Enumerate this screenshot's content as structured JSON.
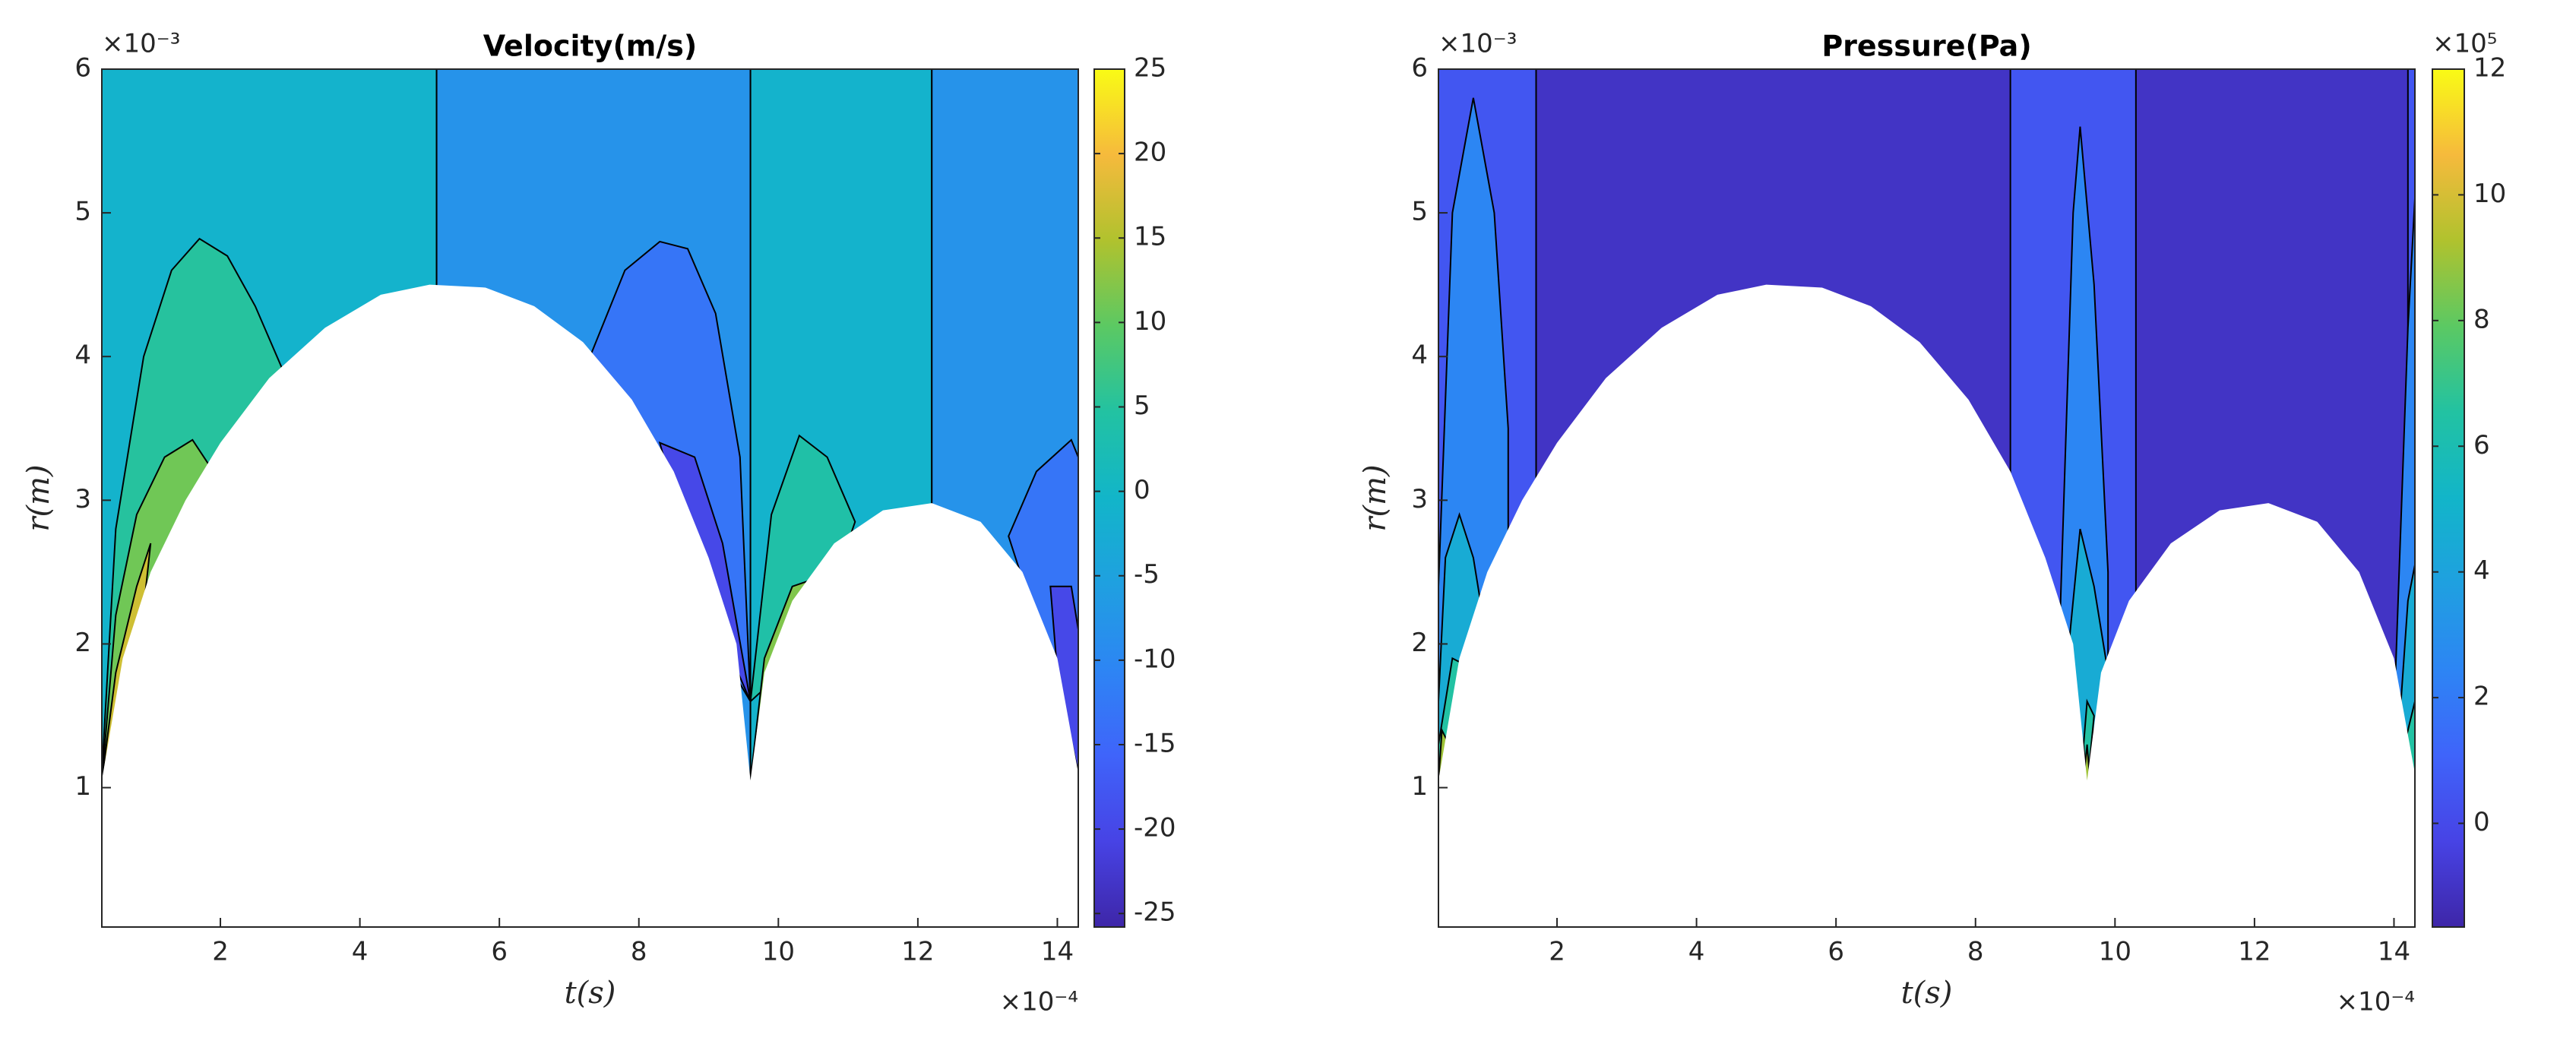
{
  "chart_data": [
    {
      "type": "contour",
      "title": "Velocity(m/s)",
      "x_label": "t(s)",
      "y_label": "r(m)",
      "x_exponent": "×10⁻⁴",
      "y_exponent": "×10⁻³",
      "xlim": [
        0.3,
        14.3
      ],
      "ylim": [
        0.03,
        6
      ],
      "xticks": [
        2,
        4,
        6,
        8,
        10,
        12,
        14
      ],
      "yticks": [
        1,
        2,
        3,
        4,
        5,
        6
      ],
      "clim": [
        -25.8,
        25
      ],
      "cticks": [
        -25,
        -20,
        -15,
        -10,
        -5,
        0,
        5,
        10,
        15,
        20,
        25
      ],
      "colormap": [
        "#3e26a8",
        "#4743e5",
        "#3f64fa",
        "#2d85f4",
        "#1fa0e0",
        "#12b5c9",
        "#22c2a2",
        "#5bc963",
        "#b0c22e",
        "#f6ba3c",
        "#f9fb15"
      ],
      "bubble": {
        "t": [
          0.3,
          0.6,
          1.0,
          1.5,
          2.0,
          2.7,
          3.5,
          4.3,
          5.0,
          5.8,
          6.5,
          7.2,
          7.9,
          8.5,
          9.0,
          9.4,
          9.6,
          9.8,
          10.2,
          10.8,
          11.5,
          12.2,
          12.9,
          13.5,
          14.0,
          14.3
        ],
        "r": [
          1.05,
          1.9,
          2.5,
          3.0,
          3.4,
          3.85,
          4.2,
          4.43,
          4.5,
          4.48,
          4.35,
          4.1,
          3.7,
          3.2,
          2.6,
          2.0,
          1.05,
          1.8,
          2.3,
          2.7,
          2.93,
          2.98,
          2.85,
          2.5,
          1.9,
          1.1
        ]
      },
      "regions": [
        {
          "level": -1,
          "points": [
            [
              0.3,
              0.03
            ],
            [
              5.1,
              0.03
            ],
            [
              5.1,
              6
            ],
            [
              0.3,
              6
            ]
          ]
        },
        {
          "level": -8,
          "points": [
            [
              5.1,
              0.03
            ],
            [
              9.6,
              0.03
            ],
            [
              9.6,
              6
            ],
            [
              5.1,
              6
            ]
          ]
        },
        {
          "level": -1,
          "points": [
            [
              9.6,
              0.03
            ],
            [
              12.2,
              0.03
            ],
            [
              12.2,
              6
            ],
            [
              9.6,
              6
            ]
          ]
        },
        {
          "level": -8,
          "points": [
            [
              12.2,
              0.03
            ],
            [
              14.3,
              0.03
            ],
            [
              14.3,
              6
            ],
            [
              12.2,
              6
            ]
          ]
        },
        {
          "level": 5,
          "points": [
            [
              0.3,
              1.1
            ],
            [
              0.5,
              2.8
            ],
            [
              0.9,
              4.0
            ],
            [
              1.3,
              4.6
            ],
            [
              1.7,
              4.82
            ],
            [
              2.1,
              4.7
            ],
            [
              2.5,
              4.35
            ],
            [
              2.9,
              3.9
            ],
            [
              2.5,
              3.0
            ]
          ]
        },
        {
          "level": 11,
          "points": [
            [
              0.3,
              1.05
            ],
            [
              0.5,
              2.2
            ],
            [
              0.8,
              2.9
            ],
            [
              1.2,
              3.3
            ],
            [
              1.6,
              3.42
            ],
            [
              1.9,
              3.2
            ],
            [
              1.5,
              2.5
            ]
          ]
        },
        {
          "level": 17,
          "points": [
            [
              0.3,
              1.05
            ],
            [
              0.5,
              1.8
            ],
            [
              0.8,
              2.4
            ],
            [
              1.0,
              2.7
            ],
            [
              0.8,
              1.8
            ]
          ]
        },
        {
          "level": -13,
          "points": [
            [
              7.3,
              4.0
            ],
            [
              7.8,
              4.6
            ],
            [
              8.3,
              4.8
            ],
            [
              8.7,
              4.75
            ],
            [
              9.1,
              4.3
            ],
            [
              9.45,
              3.3
            ],
            [
              9.6,
              1.6
            ],
            [
              8.5,
              2.5
            ]
          ]
        },
        {
          "level": -20,
          "points": [
            [
              8.3,
              3.4
            ],
            [
              8.8,
              3.3
            ],
            [
              9.2,
              2.7
            ],
            [
              9.6,
              1.6
            ],
            [
              8.8,
              2.5
            ]
          ]
        },
        {
          "level": 4,
          "points": [
            [
              9.6,
              1.6
            ],
            [
              9.9,
              2.9
            ],
            [
              10.3,
              3.45
            ],
            [
              10.7,
              3.3
            ],
            [
              11.1,
              2.85
            ],
            [
              10.5,
              2.0
            ]
          ]
        },
        {
          "level": 12,
          "points": [
            [
              9.6,
              1.05
            ],
            [
              9.8,
              1.9
            ],
            [
              10.2,
              2.4
            ],
            [
              10.5,
              2.45
            ],
            [
              10.7,
              2.3
            ],
            [
              10.2,
              1.8
            ]
          ]
        },
        {
          "level": -13,
          "points": [
            [
              13.3,
              2.75
            ],
            [
              13.7,
              3.2
            ],
            [
              14.2,
              3.42
            ],
            [
              14.3,
              3.3
            ],
            [
              14.3,
              1.1
            ],
            [
              13.8,
              2.0
            ]
          ]
        },
        {
          "level": -20,
          "points": [
            [
              13.9,
              2.4
            ],
            [
              14.2,
              2.4
            ],
            [
              14.3,
              2.1
            ],
            [
              14.3,
              1.1
            ],
            [
              14.0,
              1.8
            ]
          ]
        }
      ]
    },
    {
      "type": "contour",
      "title": "Pressure(Pa)",
      "x_label": "t(s)",
      "y_label": "r(m)",
      "x_exponent": "×10⁻⁴",
      "y_exponent": "×10⁻³",
      "c_exponent": "×10⁵",
      "xlim": [
        0.3,
        14.3
      ],
      "ylim": [
        0.03,
        6
      ],
      "xticks": [
        2,
        4,
        6,
        8,
        10,
        12,
        14
      ],
      "yticks": [
        1,
        2,
        3,
        4,
        5,
        6
      ],
      "clim": [
        -1.65,
        12
      ],
      "cticks": [
        0,
        2,
        4,
        6,
        8,
        10,
        12
      ],
      "colormap": [
        "#3e26a8",
        "#4743e5",
        "#3f64fa",
        "#2d85f4",
        "#1fa0e0",
        "#12b5c9",
        "#22c2a2",
        "#5bc963",
        "#b0c22e",
        "#f6ba3c",
        "#f9fb15"
      ],
      "bubble": {
        "t": [
          0.3,
          0.6,
          1.0,
          1.5,
          2.0,
          2.7,
          3.5,
          4.3,
          5.0,
          5.8,
          6.5,
          7.2,
          7.9,
          8.5,
          9.0,
          9.4,
          9.6,
          9.8,
          10.2,
          10.8,
          11.5,
          12.2,
          12.9,
          13.5,
          14.0,
          14.3
        ],
        "r": [
          1.05,
          1.9,
          2.5,
          3.0,
          3.4,
          3.85,
          4.2,
          4.43,
          4.5,
          4.48,
          4.35,
          4.1,
          3.7,
          3.2,
          2.6,
          2.0,
          1.05,
          1.8,
          2.3,
          2.7,
          2.93,
          2.98,
          2.85,
          2.5,
          1.9,
          1.1
        ]
      },
      "regions": [
        {
          "level": -1,
          "points": [
            [
              0.3,
              0.03
            ],
            [
              14.3,
              0.03
            ],
            [
              14.3,
              6
            ],
            [
              0.3,
              6
            ]
          ]
        },
        {
          "level": 0.5,
          "points": [
            [
              0.3,
              0.03
            ],
            [
              1.7,
              0.03
            ],
            [
              1.7,
              6
            ],
            [
              0.3,
              6
            ]
          ]
        },
        {
          "level": 0.5,
          "points": [
            [
              8.5,
              0.03
            ],
            [
              10.3,
              0.03
            ],
            [
              10.3,
              6
            ],
            [
              8.5,
              6
            ]
          ]
        },
        {
          "level": 0.5,
          "points": [
            [
              14.2,
              0.03
            ],
            [
              14.3,
              0.03
            ],
            [
              14.3,
              6
            ],
            [
              14.2,
              6
            ]
          ]
        },
        {
          "level": 2.5,
          "points": [
            [
              0.3,
              2.4
            ],
            [
              0.5,
              5.0
            ],
            [
              0.8,
              5.8
            ],
            [
              1.1,
              5.0
            ],
            [
              1.3,
              3.5
            ],
            [
              1.3,
              2.0
            ],
            [
              0.3,
              1.0
            ]
          ]
        },
        {
          "level": 2.5,
          "points": [
            [
              9.2,
              2.0
            ],
            [
              9.4,
              5.0
            ],
            [
              9.5,
              5.6
            ],
            [
              9.7,
              4.5
            ],
            [
              9.9,
              2.5
            ],
            [
              9.9,
              1.6
            ],
            [
              9.2,
              1.0
            ]
          ]
        },
        {
          "level": 2.5,
          "points": [
            [
              14.0,
              1.5
            ],
            [
              14.2,
              4.2
            ],
            [
              14.3,
              5.1
            ],
            [
              14.3,
              1.0
            ]
          ]
        },
        {
          "level": 4.5,
          "points": [
            [
              0.3,
              1.6
            ],
            [
              0.4,
              2.6
            ],
            [
              0.6,
              2.9
            ],
            [
              0.8,
              2.6
            ],
            [
              1.0,
              2.0
            ],
            [
              0.8,
              1.5
            ],
            [
              0.3,
              1.0
            ]
          ]
        },
        {
          "level": 4.5,
          "points": [
            [
              9.3,
              1.8
            ],
            [
              9.5,
              2.8
            ],
            [
              9.7,
              2.4
            ],
            [
              9.9,
              1.8
            ],
            [
              9.7,
              1.4
            ],
            [
              9.3,
              1.0
            ]
          ]
        },
        {
          "level": 4.5,
          "points": [
            [
              14.1,
              1.6
            ],
            [
              14.2,
              2.3
            ],
            [
              14.3,
              2.55
            ],
            [
              14.3,
              1.0
            ]
          ]
        },
        {
          "level": 6.5,
          "points": [
            [
              0.3,
              1.3
            ],
            [
              0.5,
              1.9
            ],
            [
              0.7,
              1.85
            ],
            [
              0.6,
              1.3
            ],
            [
              0.3,
              1.0
            ]
          ]
        },
        {
          "level": 6.5,
          "points": [
            [
              9.55,
              1.3
            ],
            [
              9.6,
              1.6
            ],
            [
              9.7,
              1.5
            ],
            [
              9.6,
              1.0
            ]
          ]
        },
        {
          "level": 6.5,
          "points": [
            [
              14.15,
              1.3
            ],
            [
              14.3,
              1.6
            ],
            [
              14.3,
              1.0
            ]
          ]
        },
        {
          "level": 9,
          "points": [
            [
              0.3,
              1.05
            ],
            [
              0.35,
              1.4
            ],
            [
              0.45,
              1.3
            ],
            [
              0.35,
              1.0
            ]
          ]
        },
        {
          "level": 9,
          "points": [
            [
              9.55,
              1.05
            ],
            [
              9.6,
              1.3
            ],
            [
              9.65,
              1.0
            ]
          ]
        }
      ]
    }
  ]
}
